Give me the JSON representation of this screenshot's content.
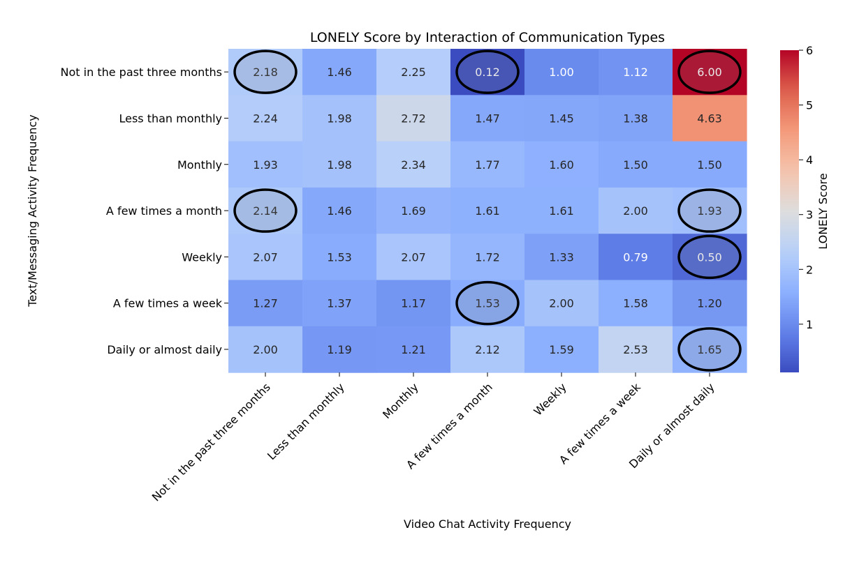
{
  "chart_data": {
    "type": "heatmap",
    "title": "LONELY Score by Interaction of Communication Types",
    "xlabel": "Video Chat Activity Frequency",
    "ylabel": "Text/Messaging Activity Frequency",
    "x_categories": [
      "Not in the past three months",
      "Less than monthly",
      "Monthly",
      "A few times a month",
      "Weekly",
      "A few times a week",
      "Daily or almost daily"
    ],
    "y_categories": [
      "Not in the past three months",
      "Less than monthly",
      "Monthly",
      "A few times a month",
      "Weekly",
      "A few times a week",
      "Daily or almost daily"
    ],
    "values": [
      [
        2.18,
        1.46,
        2.25,
        0.12,
        1.0,
        1.12,
        6.0
      ],
      [
        2.24,
        1.98,
        2.72,
        1.47,
        1.45,
        1.38,
        4.63
      ],
      [
        1.93,
        1.98,
        2.34,
        1.77,
        1.6,
        1.5,
        1.5
      ],
      [
        2.14,
        1.46,
        1.69,
        1.61,
        1.61,
        2.0,
        1.93
      ],
      [
        2.07,
        1.53,
        2.07,
        1.72,
        1.33,
        0.79,
        0.5
      ],
      [
        1.27,
        1.37,
        1.17,
        1.53,
        2.0,
        1.58,
        1.2
      ],
      [
        2.0,
        1.19,
        1.21,
        2.12,
        1.59,
        2.53,
        1.65
      ]
    ],
    "value_format": "2 decimals",
    "colormap": "coolwarm",
    "colors": {
      "low": "#3b4cc0",
      "mid": "#dddddd",
      "high": "#b40426"
    },
    "colorbar": {
      "label": "LONELY Score",
      "vmin": 0.12,
      "vmax": 6,
      "ticks": [
        "1",
        "2",
        "3",
        "4",
        "5",
        "6"
      ]
    },
    "highlighted_cells": [
      [
        0,
        0
      ],
      [
        0,
        3
      ],
      [
        0,
        6
      ],
      [
        3,
        0
      ],
      [
        3,
        6
      ],
      [
        4,
        6
      ],
      [
        5,
        3
      ],
      [
        6,
        6
      ]
    ],
    "highlight_color": "#000000",
    "grid": false
  }
}
